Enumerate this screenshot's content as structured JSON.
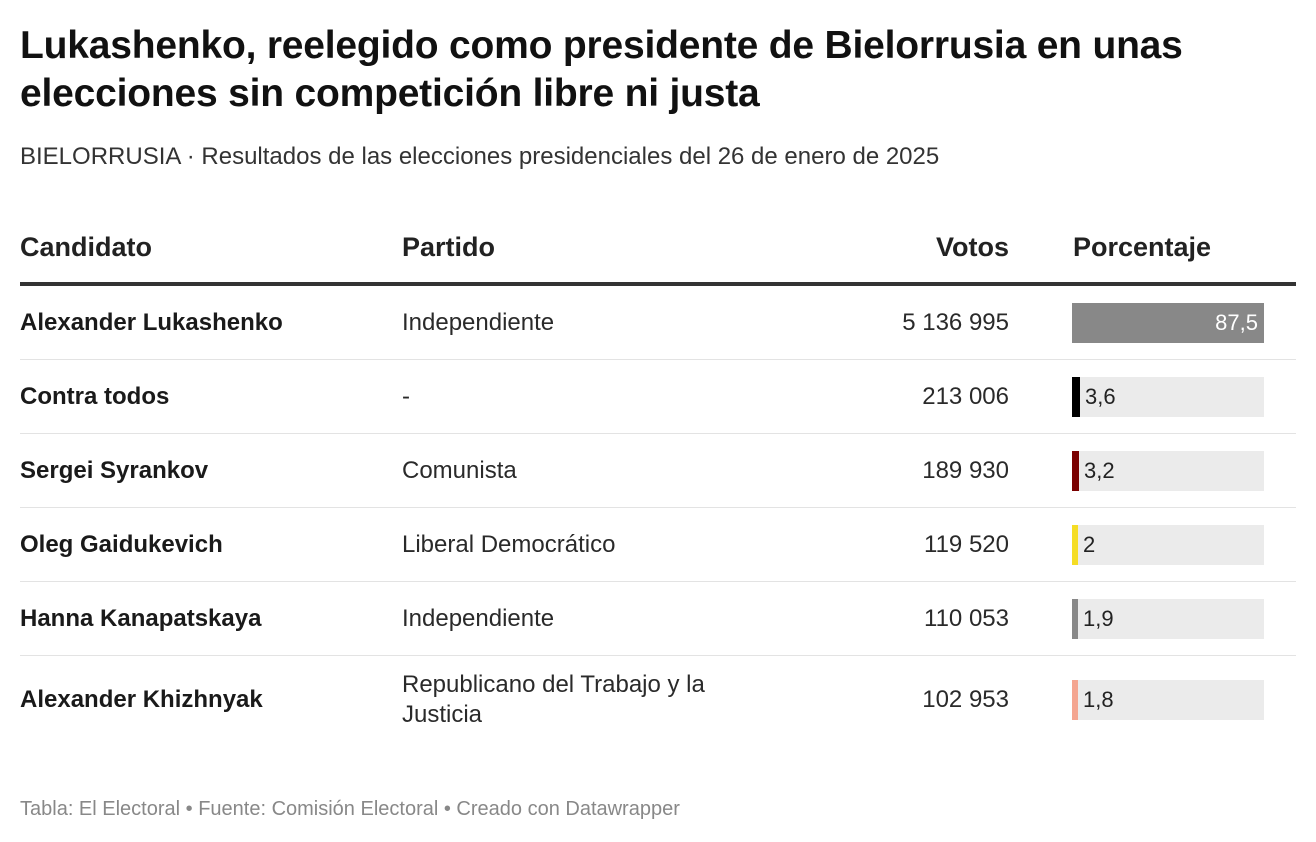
{
  "title": "Lukashenko, reelegido como presidente de Bielorrusia en unas elecciones sin competición libre ni justa",
  "subtitle": "BIELORRUSIA · Resultados de las elecciones presidenciales del 26 de enero de 2025",
  "footer": "Tabla: El Electoral • Fuente: Comisión Electoral • Creado con Datawrapper",
  "chart_data": {
    "type": "table",
    "columns": [
      "Candidato",
      "Partido",
      "Votos",
      "Porcentaje"
    ],
    "rows": [
      {
        "candidato": "Alexander Lukashenko",
        "partido": "Independiente",
        "votos": "5 136 995",
        "porcentaje_label": "87,5",
        "porcentaje": 87.5,
        "color": "#888888"
      },
      {
        "candidato": "Contra todos",
        "partido": "-",
        "votos": "213 006",
        "porcentaje_label": "3,6",
        "porcentaje": 3.6,
        "color": "#000000"
      },
      {
        "candidato": "Sergei Syrankov",
        "partido": "Comunista",
        "votos": "189 930",
        "porcentaje_label": "3,2",
        "porcentaje": 3.2,
        "color": "#7a0000"
      },
      {
        "candidato": "Oleg Gaidukevich",
        "partido": "Liberal Democrático",
        "votos": "119 520",
        "porcentaje_label": "2",
        "porcentaje": 2,
        "color": "#f5dd25"
      },
      {
        "candidato": "Hanna Kanapatskaya",
        "partido": "Independiente",
        "votos": "110 053",
        "porcentaje_label": "1,9",
        "porcentaje": 1.9,
        "color": "#888888"
      },
      {
        "candidato": "Alexander Khizhnyak",
        "partido": "Republicano del Trabajo y la Justicia",
        "votos": "102 953",
        "porcentaje_label": "1,8",
        "porcentaje": 1.8,
        "color": "#f4a590"
      }
    ],
    "bar_max": 87.5
  }
}
